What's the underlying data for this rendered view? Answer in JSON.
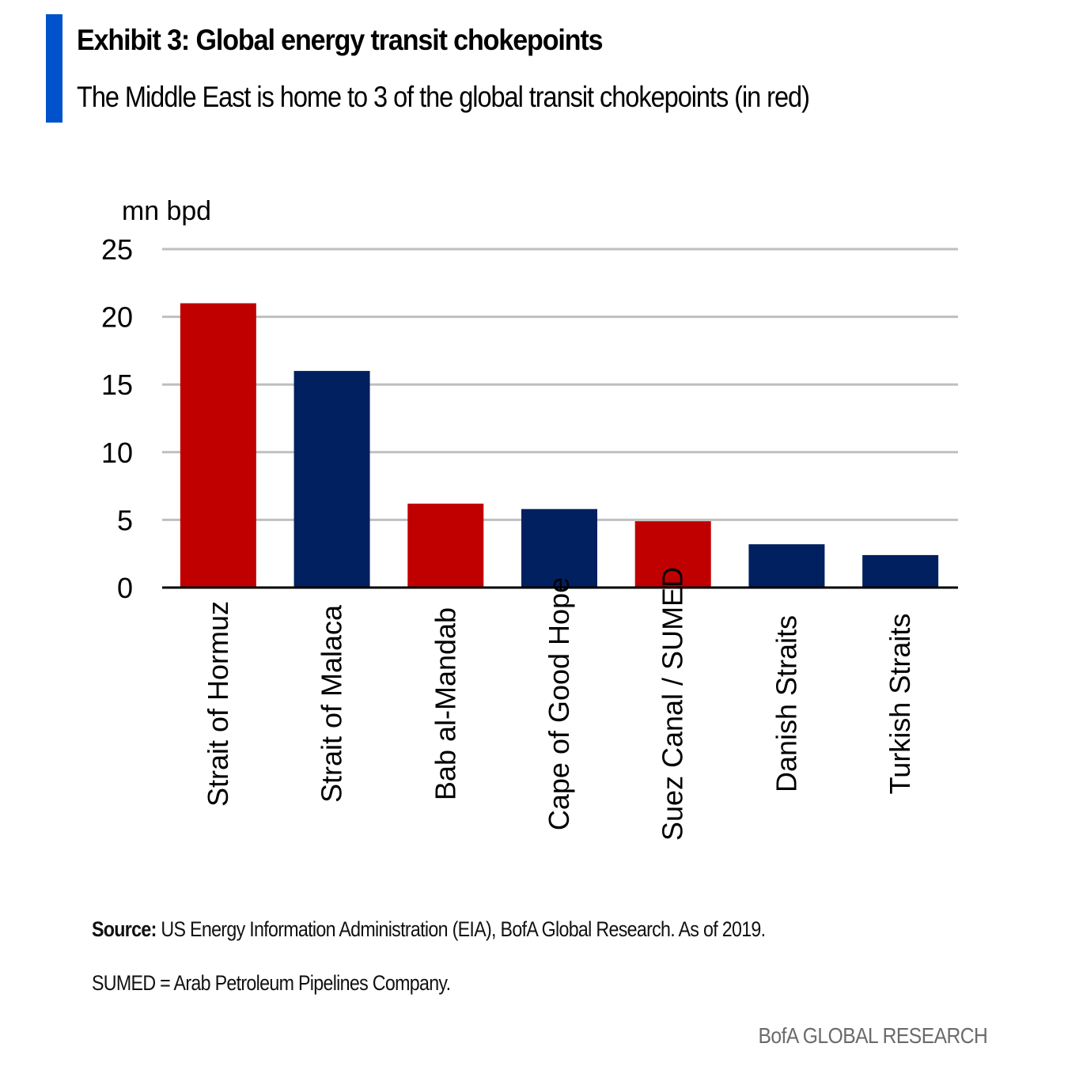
{
  "header": {
    "title": "Exhibit 3: Global energy transit chokepoints",
    "subtitle": "The Middle East is home to 3 of the global transit chokepoints (in red)"
  },
  "colors": {
    "accent": "#0052CC",
    "middle_east": "#C00000",
    "other": "#002060",
    "grid": "#BFBFBF",
    "axis": "#000000"
  },
  "chart_data": {
    "type": "bar",
    "title": "Exhibit 3: Global energy transit chokepoints",
    "subtitle": "The Middle East is home to 3 of the global transit chokepoints (in red)",
    "xlabel": "",
    "ylabel": "mn bpd",
    "ylim": [
      0,
      25
    ],
    "yticks": [
      0,
      5,
      10,
      15,
      20,
      25
    ],
    "grid": true,
    "legend": "none",
    "categories": [
      "Strait of Hormuz",
      "Strait of Malaca",
      "Bab al-Mandab",
      "Cape of Good Hope",
      "Suez Canal / SUMED",
      "Danish Straits",
      "Turkish Straits"
    ],
    "values": [
      21,
      16,
      6.2,
      5.8,
      4.9,
      3.2,
      2.4
    ],
    "middle_east": [
      true,
      false,
      true,
      false,
      true,
      false,
      false
    ]
  },
  "footer": {
    "source_label": "Source:",
    "source_text": " US Energy Information Administration (EIA), BofA Global Research. As of 2019.",
    "note": "SUMED = Arab Petroleum Pipelines Company.",
    "brand": "BofA GLOBAL RESEARCH"
  }
}
